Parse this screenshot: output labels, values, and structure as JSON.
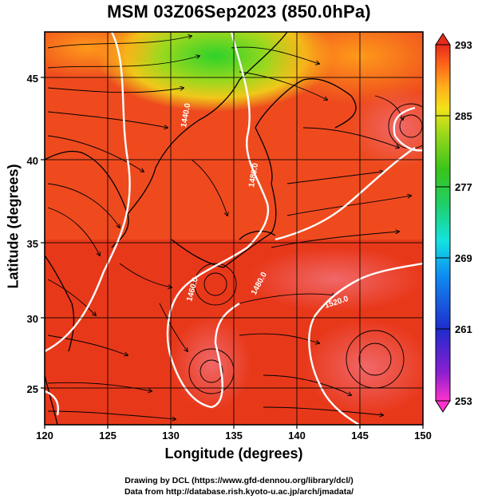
{
  "title": "MSM 03Z06Sep2023 (850.0hPa)",
  "x_axis": {
    "label": "Longitude (degrees)",
    "ticks": [
      "120",
      "125",
      "130",
      "135",
      "140",
      "145",
      "150"
    ],
    "range": [
      120,
      150
    ]
  },
  "y_axis": {
    "label": "Latitude  (degrees)",
    "ticks": [
      "25",
      "30",
      "35",
      "40",
      "45"
    ],
    "range": [
      22.5,
      47.6
    ]
  },
  "colorbar": {
    "ticks": [
      "293",
      "285",
      "277",
      "269",
      "261",
      "253"
    ],
    "range": [
      253,
      293
    ],
    "colors": [
      "#ff33cc",
      "#8a1fd0",
      "#1f2bcc",
      "#0e8bf2",
      "#13e3e0",
      "#1fcf6a",
      "#3ac41a",
      "#9bd81a",
      "#f2e21a",
      "#ffb01a",
      "#ff6a1a",
      "#e82a1a"
    ]
  },
  "contour_labels": [
    "1440.0",
    "1480.0",
    "1460.0",
    "1480.0",
    "1520.0"
  ],
  "credits": [
    "Drawing by DCL (https://www.gfd-dennou.org/library/dcl/)",
    "Data from http://database.rish.kyoto-u.ac.jp/arch/jmadata/"
  ]
}
